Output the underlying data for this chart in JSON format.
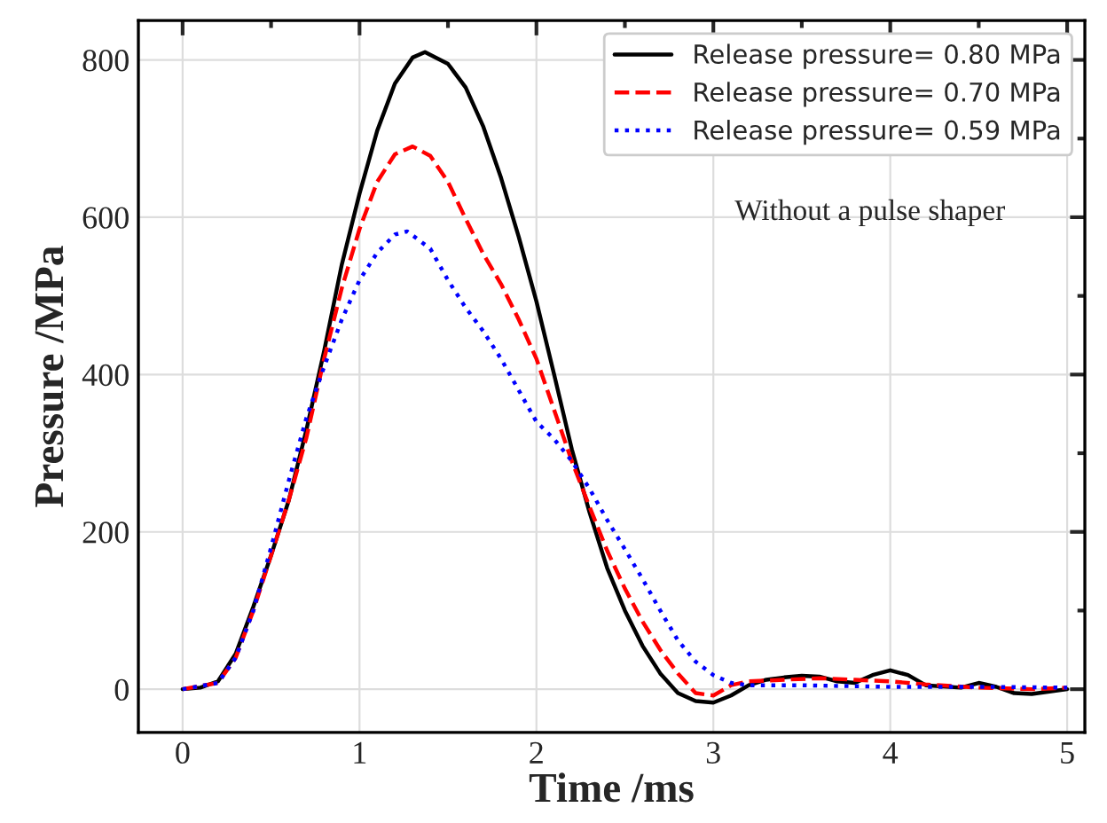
{
  "chart_data": {
    "type": "line",
    "xlabel": "Time /ms",
    "ylabel": "Pressure /MPa",
    "xlim": [
      -0.25,
      5.1
    ],
    "ylim": [
      -55,
      850
    ],
    "xticks": [
      0,
      1,
      2,
      3,
      4,
      5
    ],
    "yticks": [
      0,
      200,
      400,
      600,
      800
    ],
    "grid": true,
    "legend": "top right",
    "annotations": [
      "Without a pulse shaper"
    ],
    "series": [
      {
        "name": "Release pressure= 0.80 MPa",
        "color": "#000000",
        "line_style": "solid",
        "x": [
          0,
          0.1,
          0.2,
          0.3,
          0.4,
          0.5,
          0.6,
          0.7,
          0.8,
          0.9,
          1.0,
          1.1,
          1.2,
          1.3,
          1.37,
          1.5,
          1.6,
          1.7,
          1.8,
          1.9,
          2.0,
          2.1,
          2.2,
          2.3,
          2.4,
          2.5,
          2.6,
          2.7,
          2.8,
          2.9,
          3.0,
          3.1,
          3.2,
          3.3,
          3.4,
          3.5,
          3.6,
          3.7,
          3.8,
          3.9,
          4.0,
          4.1,
          4.2,
          4.4,
          4.5,
          4.6,
          4.7,
          4.8,
          4.9,
          5.0
        ],
        "values": [
          0,
          2,
          10,
          45,
          105,
          170,
          240,
          330,
          430,
          540,
          630,
          710,
          770,
          803,
          810,
          795,
          765,
          715,
          650,
          575,
          493,
          400,
          305,
          225,
          154,
          100,
          55,
          20,
          -5,
          -15,
          -17,
          -8,
          5,
          12,
          15,
          17,
          16,
          10,
          8,
          18,
          24,
          18,
          5,
          2,
          8,
          3,
          -5,
          -6,
          -3,
          0
        ]
      },
      {
        "name": "Release pressure= 0.70 MPa",
        "color": "#ff0000",
        "line_style": "dashed",
        "x": [
          0,
          0.2,
          0.3,
          0.4,
          0.5,
          0.6,
          0.7,
          0.8,
          0.9,
          1.0,
          1.1,
          1.2,
          1.3,
          1.4,
          1.5,
          1.6,
          1.7,
          1.8,
          1.9,
          2.0,
          2.1,
          2.2,
          2.3,
          2.4,
          2.5,
          2.6,
          2.7,
          2.8,
          2.9,
          3.0,
          3.1,
          3.2,
          3.4,
          3.6,
          3.8,
          4.0,
          4.2,
          4.5,
          4.8,
          5.0
        ],
        "values": [
          0,
          8,
          40,
          100,
          170,
          240,
          320,
          420,
          510,
          585,
          645,
          680,
          690,
          678,
          645,
          598,
          553,
          515,
          470,
          420,
          355,
          290,
          232,
          176,
          128,
          86,
          50,
          20,
          -5,
          -8,
          5,
          10,
          12,
          14,
          12,
          10,
          6,
          2,
          0,
          2
        ]
      },
      {
        "name": "Release pressure= 0.59 MPa",
        "color": "#0000ff",
        "line_style": "dotted",
        "x": [
          0,
          0.2,
          0.3,
          0.4,
          0.5,
          0.6,
          0.7,
          0.8,
          0.9,
          1.0,
          1.1,
          1.2,
          1.27,
          1.4,
          1.5,
          1.6,
          1.7,
          1.8,
          1.9,
          2.0,
          2.1,
          2.2,
          2.3,
          2.4,
          2.5,
          2.6,
          2.7,
          2.8,
          2.9,
          3.0,
          3.1,
          3.2,
          3.5,
          4.0,
          4.5,
          5.0
        ],
        "values": [
          0,
          8,
          40,
          100,
          180,
          265,
          345,
          410,
          470,
          520,
          555,
          578,
          582,
          560,
          520,
          485,
          455,
          420,
          380,
          340,
          318,
          290,
          255,
          215,
          178,
          140,
          100,
          62,
          35,
          18,
          8,
          5,
          5,
          3,
          3,
          2
        ]
      }
    ]
  }
}
